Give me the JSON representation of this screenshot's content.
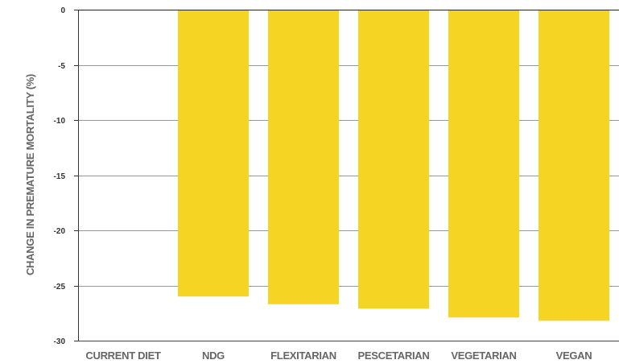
{
  "chart_data": {
    "type": "bar",
    "title": "",
    "xlabel": "",
    "ylabel": "CHANGE IN PREMATURE MORTALITY (%)",
    "categories": [
      "CURRENT DIET",
      "NDG",
      "FLEXITARIAN",
      "PESCETARIAN",
      "VEGETARIAN",
      "VEGAN"
    ],
    "values": [
      0,
      -26.0,
      -26.7,
      -27.1,
      -27.9,
      -28.2
    ],
    "ylim": [
      -30,
      0
    ],
    "yticks": [
      0,
      -5,
      -10,
      -15,
      -20,
      -25,
      -30
    ],
    "grid": true,
    "bar_color": "#f5d423"
  }
}
